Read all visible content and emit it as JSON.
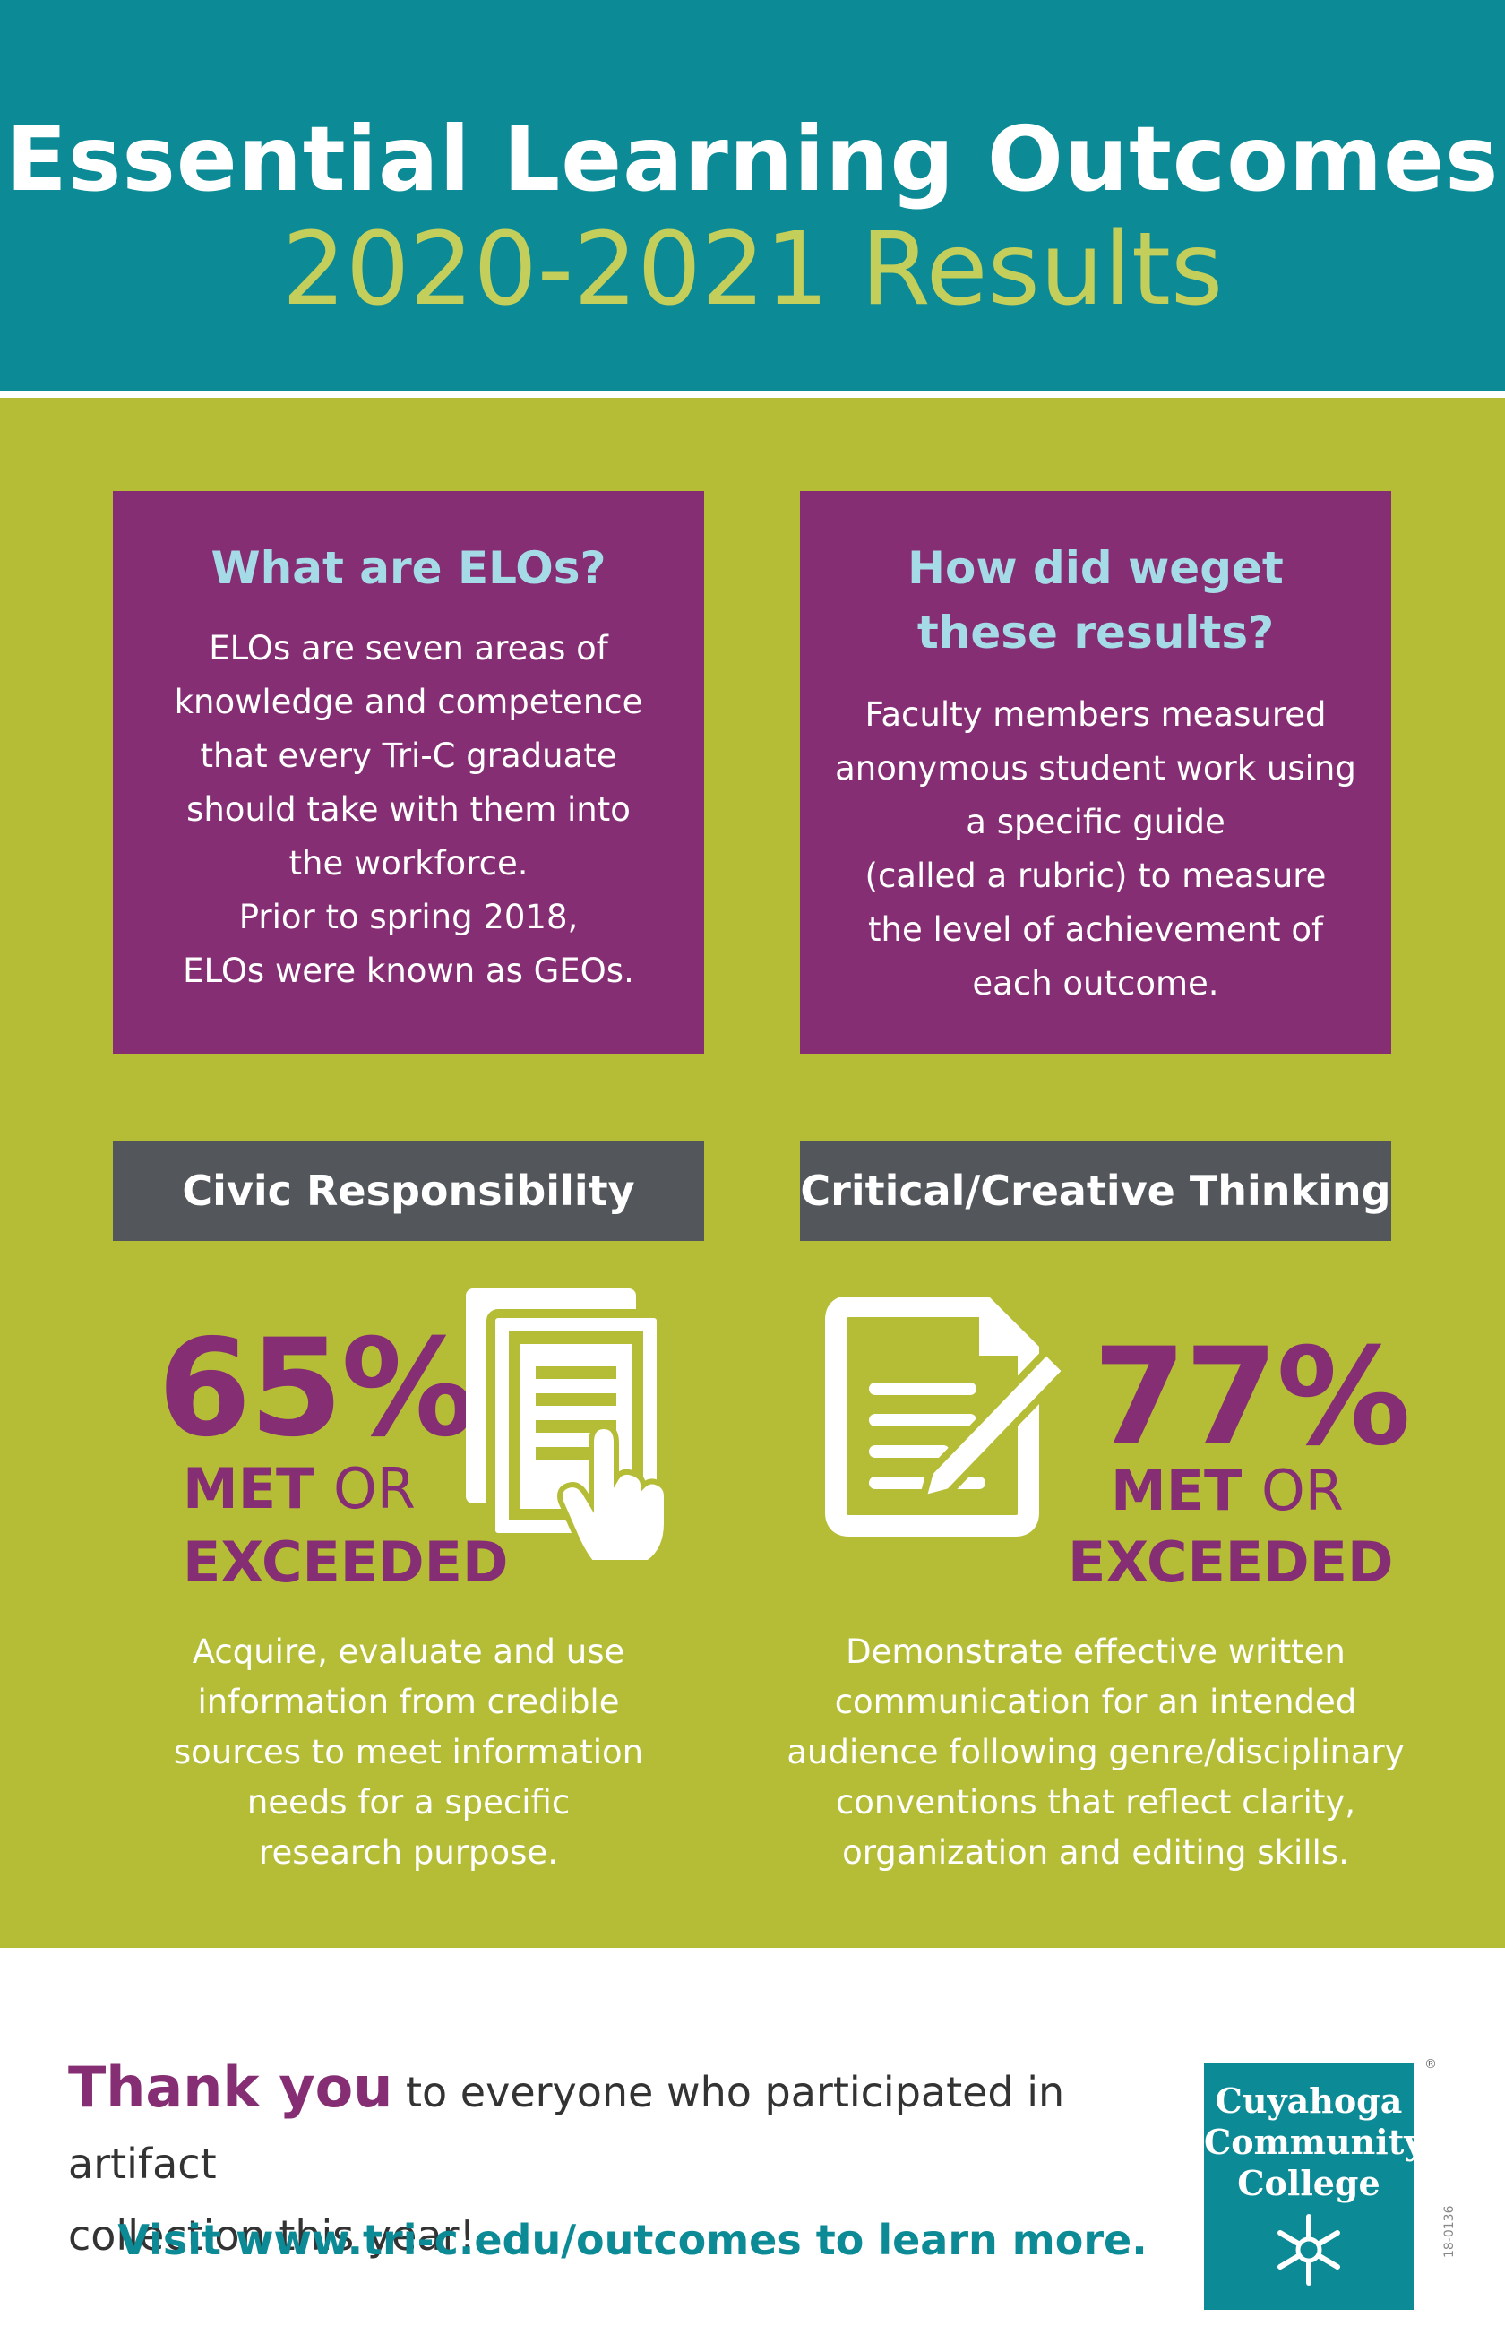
{
  "header": {
    "title": "Essential Learning Outcomes",
    "subtitle": "2020-2021 Results"
  },
  "what_box": {
    "heading": "What are ELOs?",
    "body_lines": [
      "ELOs are seven areas of",
      "knowledge and competence",
      "that every Tri-C graduate",
      "should take with them into",
      "the workforce."
    ],
    "note_lines": [
      "Prior to spring 2018,",
      "ELOs were known as GEOs."
    ]
  },
  "how_box": {
    "heading_lines": [
      "How did weget",
      "these results?"
    ],
    "body_lines": [
      "Faculty members measured",
      "anonymous student work using",
      "a specific guide",
      "(called a rubric) to measure",
      "the level of achievement of",
      "each outcome."
    ]
  },
  "civic": {
    "label": "Civic Responsibility",
    "percent": "65%",
    "met": "MET",
    "or": "OR",
    "exceeded": "EXCEEDED",
    "icon": "document-tap-icon",
    "desc_lines": [
      "Acquire, evaluate and use",
      "information from credible",
      "sources to meet information",
      "needs for a  specific",
      "research purpose."
    ]
  },
  "critical": {
    "label": "Critical/Creative Thinking",
    "percent": "77%",
    "met": "MET",
    "or": "OR",
    "exceeded": "EXCEEDED",
    "icon": "document-pen-icon",
    "desc_lines": [
      "Demonstrate effective written",
      "communication for an intended",
      "audience following genre/disciplinary",
      "conventions that reflect clarity,",
      "organization and editing skills."
    ]
  },
  "footer": {
    "thanks_strong": "Thank you",
    "thanks_line1": " to everyone who participated in artifact",
    "thanks_line2": "collection this year!",
    "visit": "Visit www.tri-c.edu/outcomes to learn more.",
    "logo_lines": [
      "Cuyahoga",
      "Community",
      "College"
    ],
    "registered_mark": "®",
    "code": "18-0136"
  },
  "colors": {
    "teal": "#0c8a95",
    "lime": "#b5bd37",
    "purple": "#862e73",
    "grey": "#53565a",
    "subtitle": "#c4ce5a",
    "heading_blue": "#a5dbe6"
  }
}
